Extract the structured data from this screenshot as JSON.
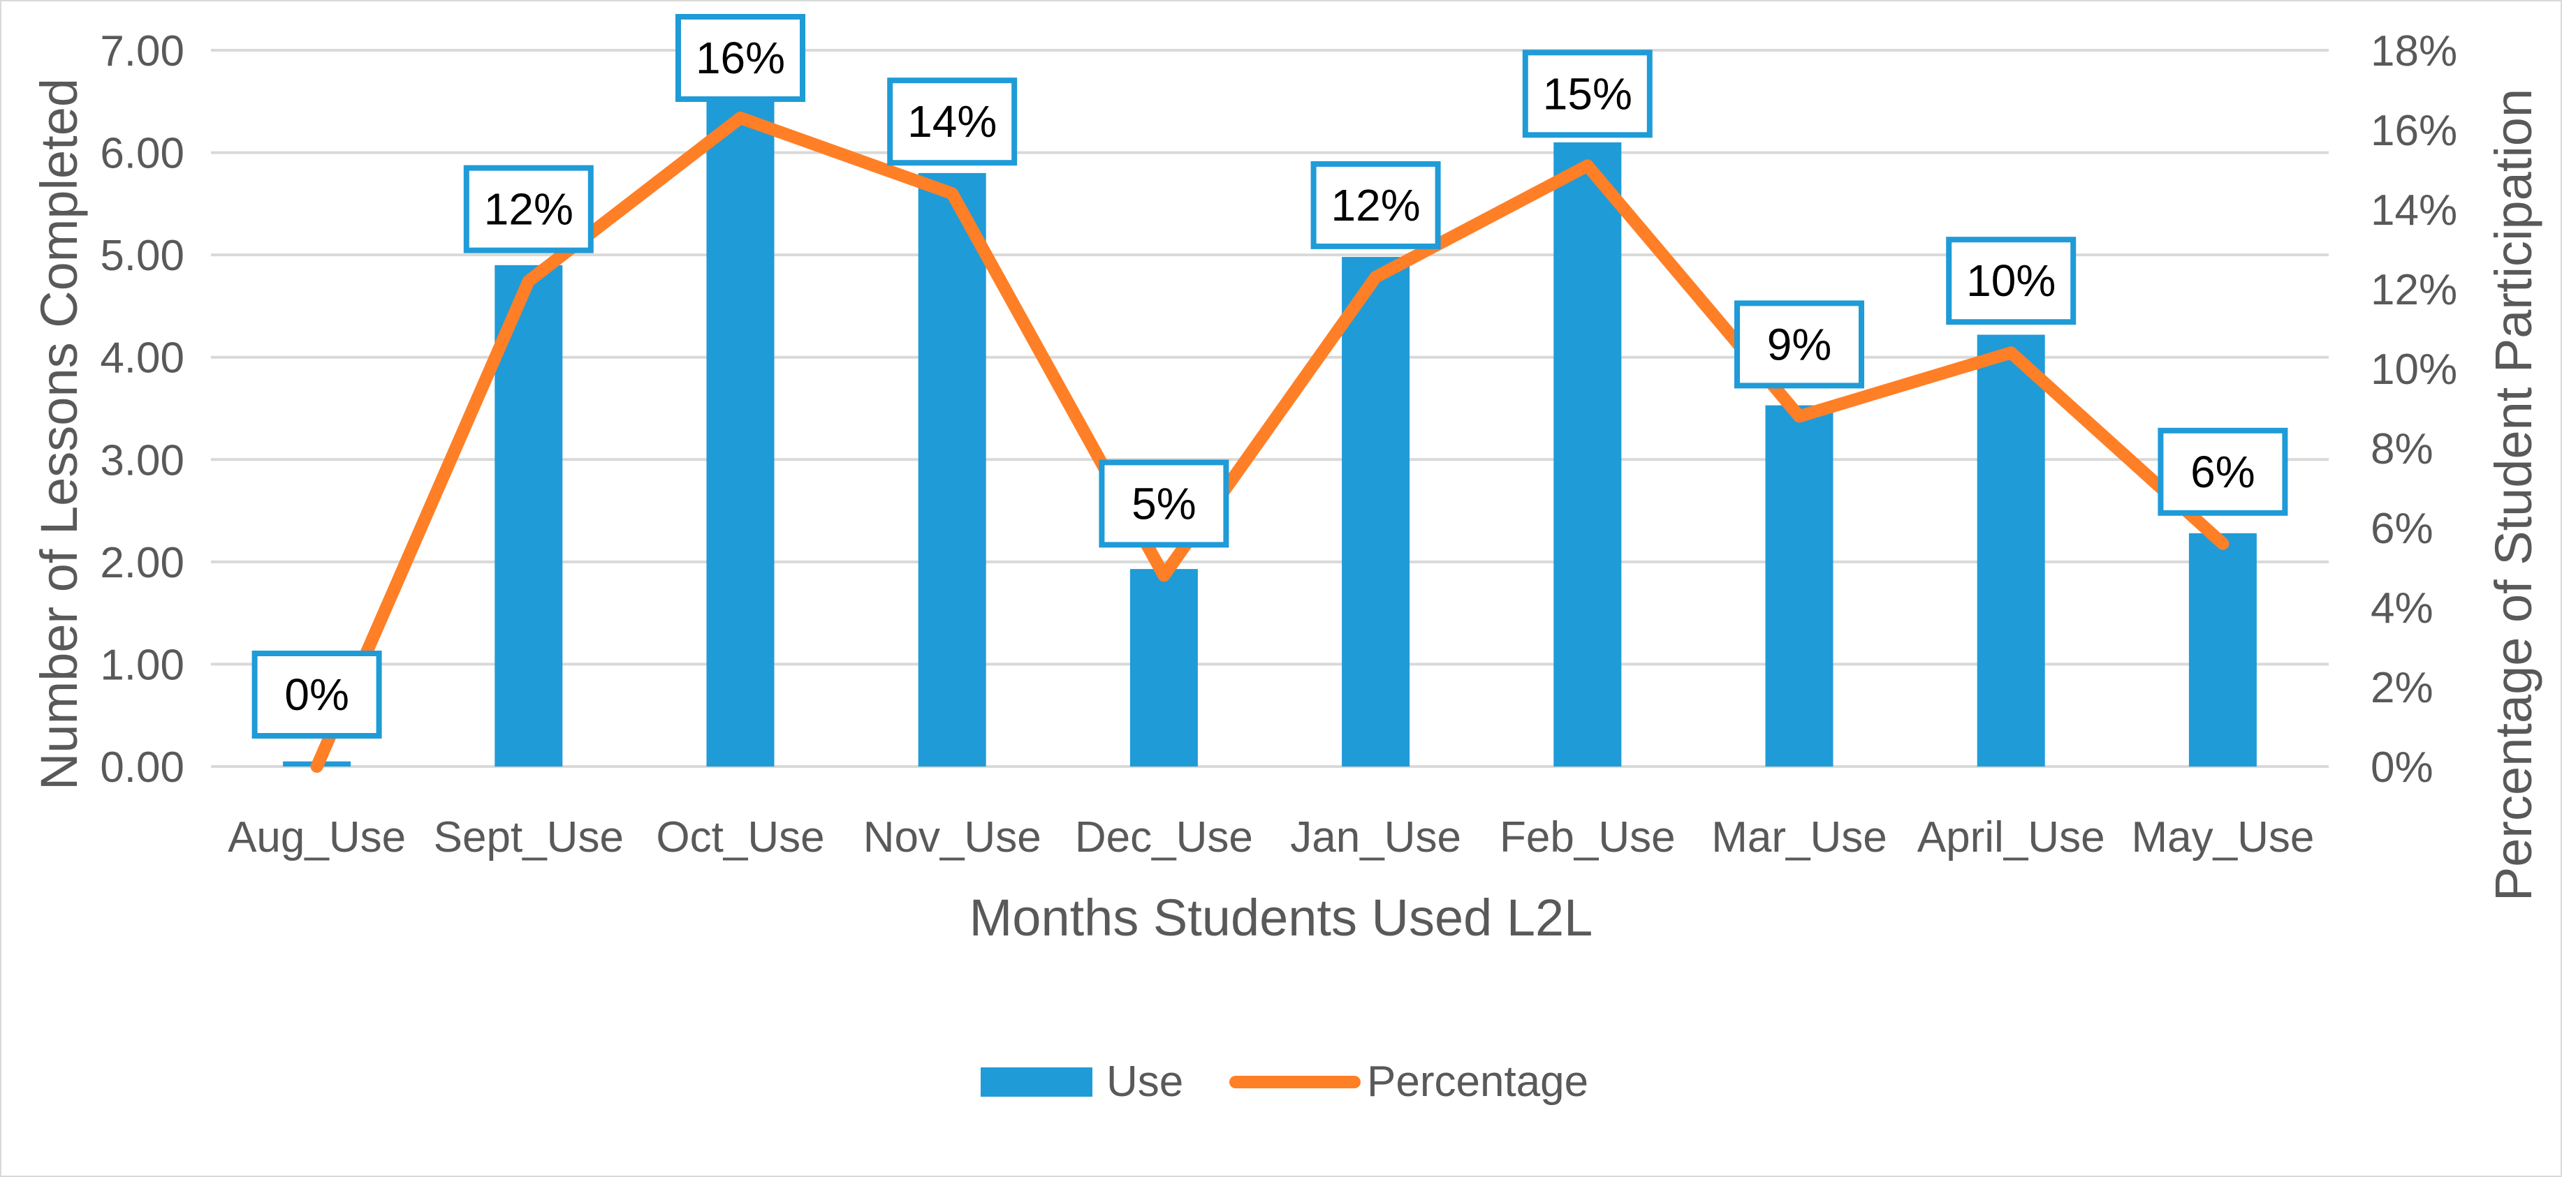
{
  "chart_data": {
    "type": "bar",
    "title": "",
    "xlabel": "Months Students Used L2L",
    "ylabel": "Number of Lessons Completed",
    "y2label": "Percentage of Student Participation",
    "categories": [
      "Aug_Use",
      "Sept_Use",
      "Oct_Use",
      "Nov_Use",
      "Dec_Use",
      "Jan_Use",
      "Feb_Use",
      "Mar_Use",
      "April_Use",
      "May_Use"
    ],
    "ylim": [
      0,
      7
    ],
    "y2lim": [
      0,
      18
    ],
    "y_ticks": [
      "0.00",
      "1.00",
      "2.00",
      "3.00",
      "4.00",
      "5.00",
      "6.00",
      "7.00"
    ],
    "y2_ticks": [
      "0%",
      "2%",
      "4%",
      "6%",
      "8%",
      "10%",
      "12%",
      "14%",
      "16%",
      "18%"
    ],
    "grid": true,
    "legend_position": "bottom",
    "series": [
      {
        "name": "Use",
        "type": "bar",
        "axis": "left",
        "color": "#1f9bd7",
        "values": [
          0.05,
          4.9,
          6.6,
          5.8,
          1.93,
          4.98,
          6.1,
          3.53,
          4.22,
          2.28
        ]
      },
      {
        "name": "Percentage",
        "type": "line",
        "axis": "right",
        "color": "#ff7f27",
        "values": [
          0,
          12.2,
          16.3,
          14.4,
          4.8,
          12.3,
          15.1,
          8.8,
          10.4,
          5.6
        ],
        "data_labels": [
          "0%",
          "12%",
          "16%",
          "14%",
          "5%",
          "12%",
          "15%",
          "9%",
          "10%",
          "6%"
        ]
      }
    ]
  }
}
